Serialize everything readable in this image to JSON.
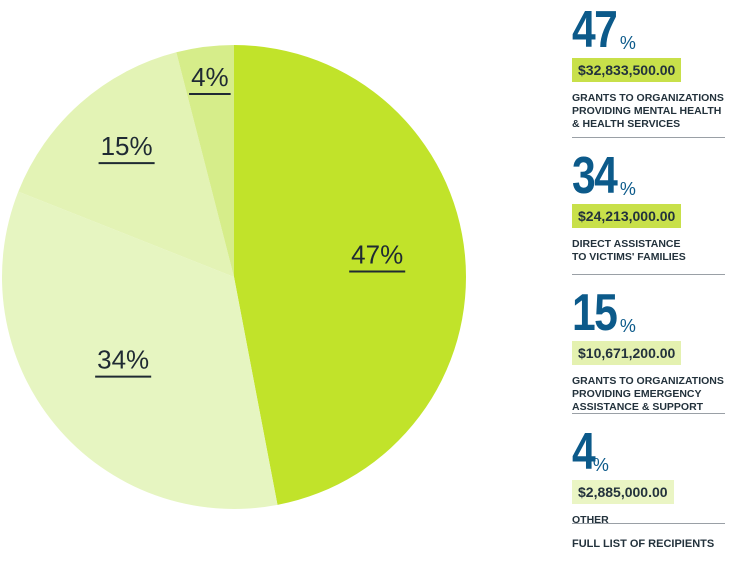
{
  "chart_data": {
    "type": "pie",
    "slices": [
      {
        "label": "47%",
        "value": 47,
        "color": "#c1e32a"
      },
      {
        "label": "34%",
        "value": 34,
        "color": "#e6f5c1"
      },
      {
        "label": "15%",
        "value": 15,
        "color": "#e3f3b5"
      },
      {
        "label": "4%",
        "value": 4,
        "color": "#d6ed8a"
      }
    ]
  },
  "sidebar": {
    "items": [
      {
        "percent": "47",
        "percent_sign": "%",
        "amount": "$32,833,500.00",
        "description_lines": [
          "GRANTS TO ORGANIZATIONS",
          "PROVIDING MENTAL HEALTH",
          "& HEALTH SERVICES"
        ]
      },
      {
        "percent": "34",
        "percent_sign": "%",
        "amount": "$24,213,000.00",
        "description_lines": [
          "DIRECT ASSISTANCE",
          "TO VICTIMS' FAMILIES"
        ]
      },
      {
        "percent": "15",
        "percent_sign": "%",
        "amount": "$10,671,200.00",
        "description_lines": [
          "GRANTS TO ORGANIZATIONS",
          "PROVIDING EMERGENCY",
          "ASSISTANCE & SUPPORT"
        ]
      },
      {
        "percent": "4",
        "percent_sign": "%",
        "amount": "$2,885,000.00",
        "description_lines": [
          "OTHER"
        ]
      }
    ],
    "footer_link": "FULL LIST OF RECIPIENTS"
  },
  "colors": {
    "accent_blue": "#0c5a8a",
    "lime": "#c1e32a",
    "text_dark": "#23323c"
  }
}
